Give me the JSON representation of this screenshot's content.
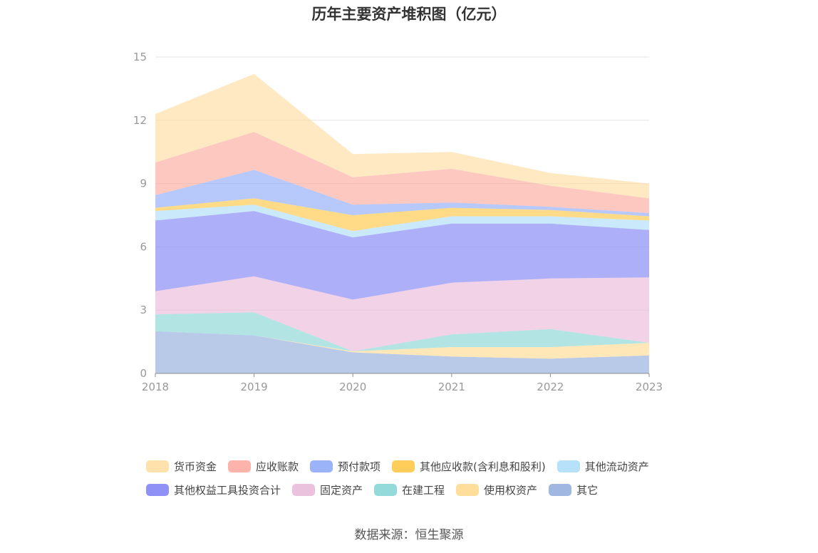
{
  "chart_data": {
    "type": "area",
    "stacked": true,
    "title": "历年主要资产堆积图（亿元）",
    "x": [
      "2018",
      "2019",
      "2020",
      "2021",
      "2022",
      "2023"
    ],
    "ylim": [
      0,
      15
    ],
    "yticks": [
      "0",
      "3",
      "6",
      "9",
      "12",
      "15"
    ],
    "grid": true,
    "legend_position": "bottom",
    "series": [
      {
        "name": "其它",
        "color": "#8eaadc",
        "values": [
          2.0,
          1.8,
          1.0,
          0.8,
          0.7,
          0.85
        ]
      },
      {
        "name": "使用权资产",
        "color": "#ffd88a",
        "values": [
          0,
          0,
          0.05,
          0.45,
          0.55,
          0.6
        ]
      },
      {
        "name": "在建工程",
        "color": "#82d4d4",
        "values": [
          0.8,
          1.1,
          0,
          0.6,
          0.85,
          0
        ]
      },
      {
        "name": "固定资产",
        "color": "#e8b7d7",
        "values": [
          1.1,
          1.7,
          2.45,
          2.45,
          2.4,
          3.1
        ]
      },
      {
        "name": "其他权益工具投资合计",
        "color": "#7b7ef4",
        "values": [
          3.35,
          3.1,
          2.95,
          2.8,
          2.6,
          2.25
        ]
      },
      {
        "name": "其他流动资产",
        "color": "#aadcf8",
        "values": [
          0.45,
          0.3,
          0.3,
          0.35,
          0.35,
          0.45
        ]
      },
      {
        "name": "其他应收款(含利息和股利)",
        "color": "#ffc53d",
        "values": [
          0.15,
          0.3,
          0.75,
          0.4,
          0.3,
          0.2
        ]
      },
      {
        "name": "预付款项",
        "color": "#8aa6f8",
        "values": [
          0.6,
          1.35,
          0.5,
          0.25,
          0.15,
          0.15
        ]
      },
      {
        "name": "应收账款",
        "color": "#fba69a",
        "values": [
          1.55,
          1.8,
          1.3,
          1.6,
          1.0,
          0.7
        ]
      },
      {
        "name": "货币资金",
        "color": "#ffdc9c",
        "values": [
          2.3,
          2.75,
          1.1,
          0.8,
          0.6,
          0.7
        ]
      }
    ],
    "legend_order": [
      "货币资金",
      "应收账款",
      "预付款项",
      "其他应收款(含利息和股利)",
      "其他流动资产",
      "其他权益工具投资合计",
      "固定资产",
      "在建工程",
      "使用权资产",
      "其它"
    ],
    "source": "数据来源：恒生聚源"
  }
}
